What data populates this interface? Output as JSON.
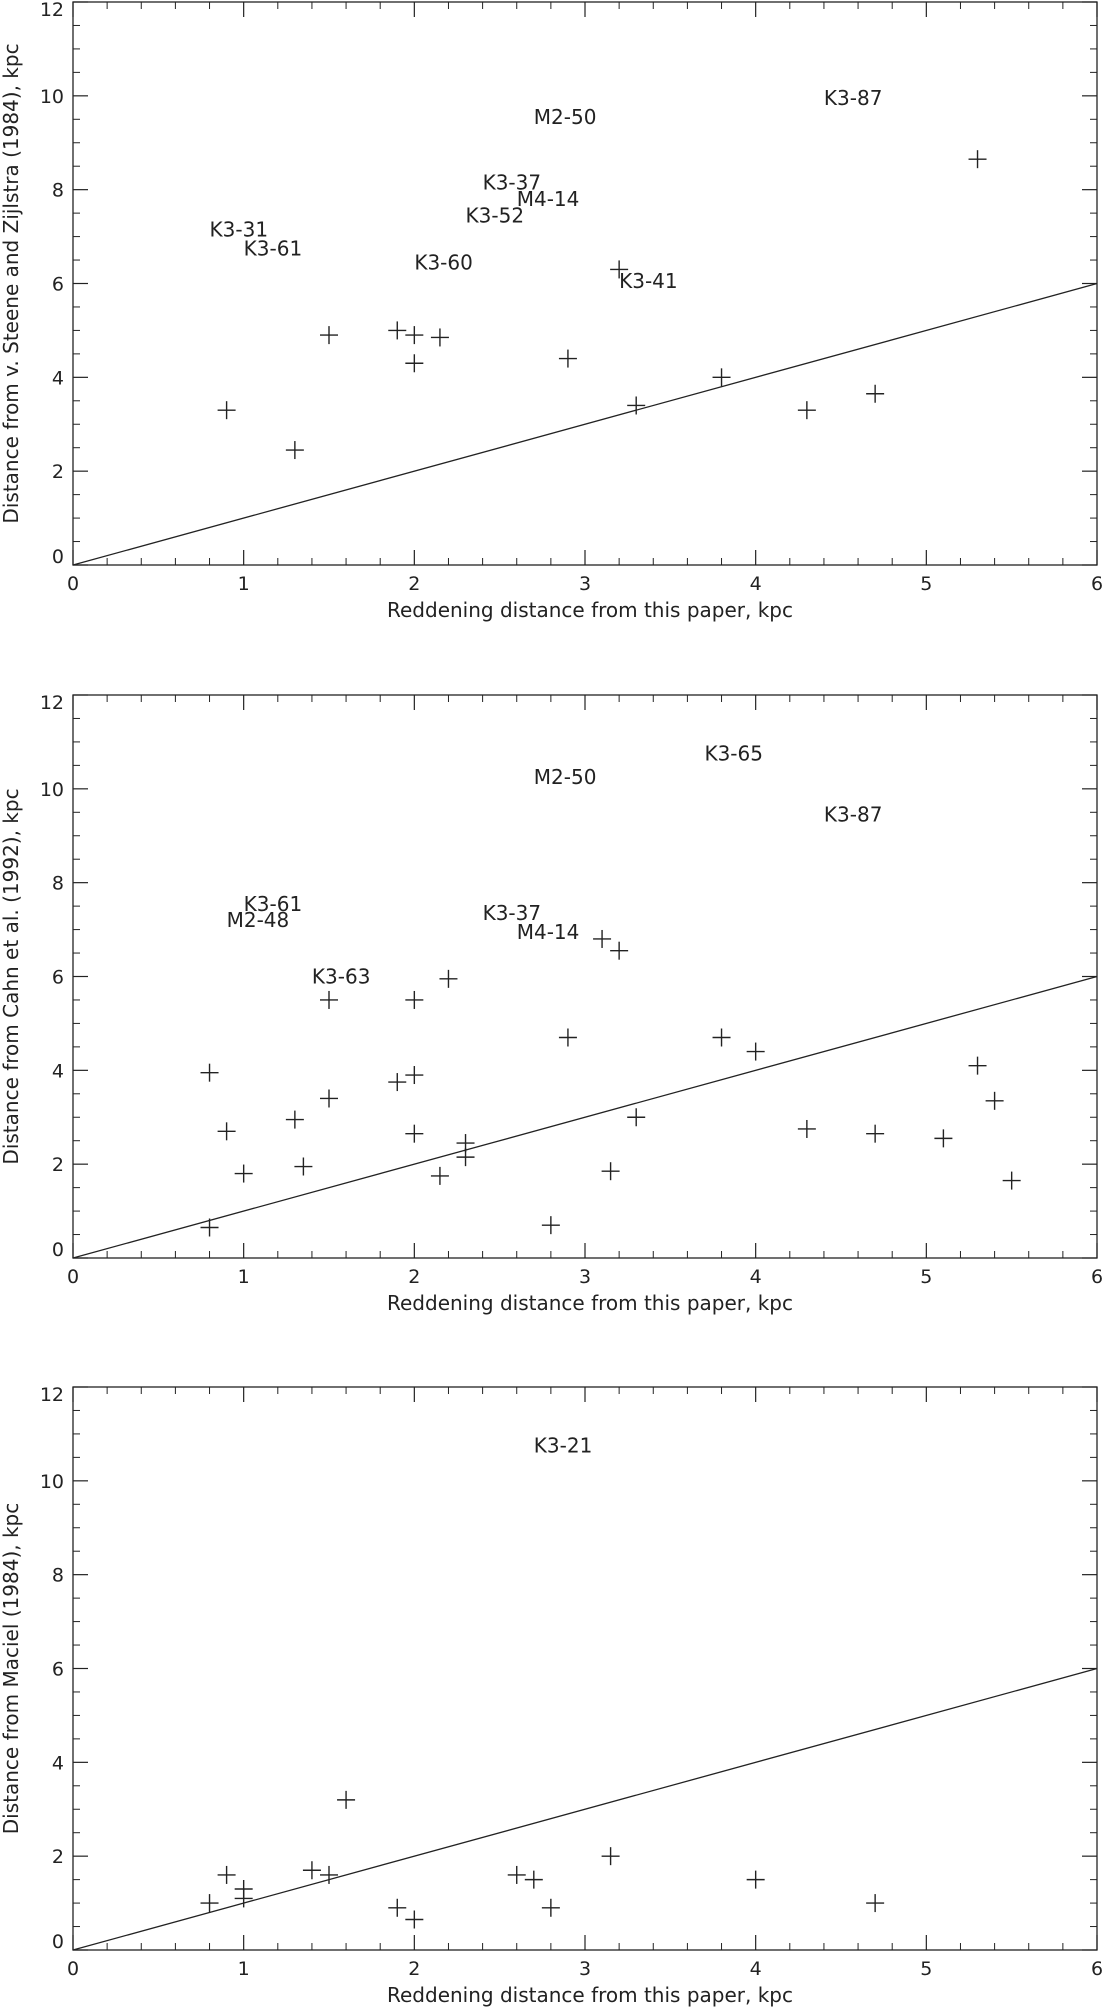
{
  "chart_data": [
    {
      "type": "scatter",
      "xlabel": "Reddening distance from this paper, kpc",
      "ylabel": "Distance from v. Steene and Zijlstra (1984), kpc",
      "xlim": [
        0,
        6
      ],
      "ylim": [
        0,
        12
      ],
      "xticks": [
        0,
        1,
        2,
        3,
        4,
        5,
        6
      ],
      "yticks": [
        0,
        2,
        4,
        6,
        8,
        10,
        12
      ],
      "reference_line": {
        "x": [
          0,
          6
        ],
        "y": [
          0,
          6
        ]
      },
      "points": [
        {
          "x": 0.9,
          "y": 3.3
        },
        {
          "x": 1.3,
          "y": 2.45
        },
        {
          "x": 1.5,
          "y": 4.9
        },
        {
          "x": 1.9,
          "y": 5.0
        },
        {
          "x": 2.0,
          "y": 4.9
        },
        {
          "x": 2.0,
          "y": 4.3
        },
        {
          "x": 2.15,
          "y": 4.85
        },
        {
          "x": 2.9,
          "y": 4.4
        },
        {
          "x": 3.2,
          "y": 6.3
        },
        {
          "x": 3.3,
          "y": 3.4
        },
        {
          "x": 3.8,
          "y": 4.0
        },
        {
          "x": 4.3,
          "y": 3.3
        },
        {
          "x": 4.7,
          "y": 3.65
        },
        {
          "x": 5.3,
          "y": 8.65
        }
      ],
      "labels": [
        {
          "text": "K3-31",
          "x": 0.8,
          "y": 7.0
        },
        {
          "text": "K3-61",
          "x": 1.0,
          "y": 6.6
        },
        {
          "text": "K3-60",
          "x": 2.0,
          "y": 6.3
        },
        {
          "text": "K3-52",
          "x": 2.3,
          "y": 7.3
        },
        {
          "text": "K3-37",
          "x": 2.4,
          "y": 8.0
        },
        {
          "text": "M4-14",
          "x": 2.6,
          "y": 7.65
        },
        {
          "text": "M2-50",
          "x": 2.7,
          "y": 9.4
        },
        {
          "text": "K3-41",
          "x": 3.2,
          "y": 5.9
        },
        {
          "text": "K3-87",
          "x": 4.4,
          "y": 9.8
        }
      ]
    },
    {
      "type": "scatter",
      "xlabel": "Reddening distance from this paper, kpc",
      "ylabel": "Distance from Cahn et al. (1992), kpc",
      "xlim": [
        0,
        6
      ],
      "ylim": [
        0,
        12
      ],
      "xticks": [
        0,
        1,
        2,
        3,
        4,
        5,
        6
      ],
      "yticks": [
        0,
        2,
        4,
        6,
        8,
        10,
        12
      ],
      "reference_line": {
        "x": [
          0,
          6
        ],
        "y": [
          0,
          6
        ]
      },
      "points": [
        {
          "x": 0.8,
          "y": 3.95
        },
        {
          "x": 0.8,
          "y": 0.65
        },
        {
          "x": 0.9,
          "y": 2.7
        },
        {
          "x": 1.0,
          "y": 1.8
        },
        {
          "x": 1.3,
          "y": 2.95
        },
        {
          "x": 1.35,
          "y": 1.95
        },
        {
          "x": 1.5,
          "y": 5.5
        },
        {
          "x": 1.5,
          "y": 3.4
        },
        {
          "x": 1.9,
          "y": 3.75
        },
        {
          "x": 2.0,
          "y": 5.5
        },
        {
          "x": 2.0,
          "y": 3.9
        },
        {
          "x": 2.0,
          "y": 2.65
        },
        {
          "x": 2.15,
          "y": 1.75
        },
        {
          "x": 2.2,
          "y": 5.95
        },
        {
          "x": 2.3,
          "y": 2.45
        },
        {
          "x": 2.3,
          "y": 2.15
        },
        {
          "x": 2.8,
          "y": 0.7
        },
        {
          "x": 2.9,
          "y": 4.7
        },
        {
          "x": 3.1,
          "y": 6.8
        },
        {
          "x": 3.15,
          "y": 1.85
        },
        {
          "x": 3.2,
          "y": 6.55
        },
        {
          "x": 3.3,
          "y": 3.0
        },
        {
          "x": 3.8,
          "y": 4.7
        },
        {
          "x": 4.0,
          "y": 4.4
        },
        {
          "x": 4.3,
          "y": 2.75
        },
        {
          "x": 4.7,
          "y": 2.65
        },
        {
          "x": 5.1,
          "y": 2.55
        },
        {
          "x": 5.3,
          "y": 4.1
        },
        {
          "x": 5.4,
          "y": 3.35
        },
        {
          "x": 5.5,
          "y": 1.65
        }
      ],
      "labels": [
        {
          "text": "K3-61",
          "x": 1.0,
          "y": 7.4
        },
        {
          "text": "M2-48",
          "x": 0.9,
          "y": 7.05
        },
        {
          "text": "K3-63",
          "x": 1.4,
          "y": 5.85
        },
        {
          "text": "K3-37",
          "x": 2.4,
          "y": 7.2
        },
        {
          "text": "M4-14",
          "x": 2.6,
          "y": 6.8
        },
        {
          "text": "M2-50",
          "x": 2.7,
          "y": 10.1
        },
        {
          "text": "K3-65",
          "x": 3.7,
          "y": 10.6
        },
        {
          "text": "K3-87",
          "x": 4.4,
          "y": 9.3
        }
      ]
    },
    {
      "type": "scatter",
      "xlabel": "Reddening distance from this paper, kpc",
      "ylabel": "Distance from Maciel (1984), kpc",
      "xlim": [
        0,
        6
      ],
      "ylim": [
        0,
        12
      ],
      "xticks": [
        0,
        1,
        2,
        3,
        4,
        5,
        6
      ],
      "yticks": [
        0,
        2,
        4,
        6,
        8,
        10,
        12
      ],
      "reference_line": {
        "x": [
          0,
          6
        ],
        "y": [
          0,
          6
        ]
      },
      "points": [
        {
          "x": 0.8,
          "y": 1.0
        },
        {
          "x": 0.9,
          "y": 1.6
        },
        {
          "x": 1.0,
          "y": 1.3
        },
        {
          "x": 1.0,
          "y": 1.1
        },
        {
          "x": 1.4,
          "y": 1.7
        },
        {
          "x": 1.5,
          "y": 1.6
        },
        {
          "x": 1.6,
          "y": 3.2
        },
        {
          "x": 1.9,
          "y": 0.9
        },
        {
          "x": 2.0,
          "y": 0.65
        },
        {
          "x": 2.6,
          "y": 1.6
        },
        {
          "x": 2.7,
          "y": 1.5
        },
        {
          "x": 2.8,
          "y": 0.9
        },
        {
          "x": 3.15,
          "y": 2.0
        },
        {
          "x": 4.0,
          "y": 1.5
        },
        {
          "x": 4.7,
          "y": 1.0
        }
      ],
      "labels": [
        {
          "text": "K3-21",
          "x": 2.7,
          "y": 10.6
        }
      ]
    }
  ]
}
